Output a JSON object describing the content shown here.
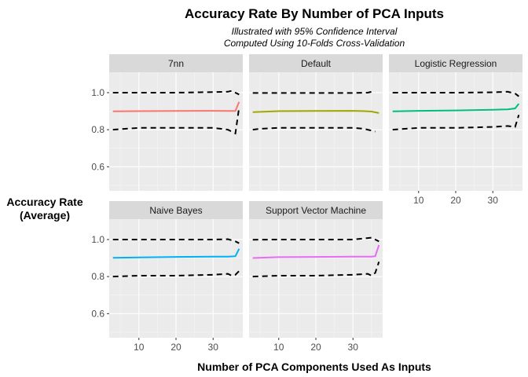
{
  "chart_data": {
    "type": "line",
    "title": "Accuracy Rate By Number of PCA Inputs",
    "subtitle_lines": [
      "Illustrated with 95% Confidence Interval",
      "Computed Using 10-Folds Cross-Validation"
    ],
    "xlabel": "Number of PCA Components Used As Inputs",
    "ylabel_lines": [
      "Accuracy Rate",
      "(Average)"
    ],
    "xlim": [
      2,
      38
    ],
    "ylim": [
      0.47,
      1.11
    ],
    "x_ticks": [
      10,
      20,
      30
    ],
    "y_ticks": [
      0.6,
      0.8,
      1.0
    ],
    "x_tick_labels": [
      "10",
      "20",
      "30"
    ],
    "y_tick_labels": [
      "0.6",
      "0.8",
      "1.0"
    ],
    "grid": true,
    "legend": "none",
    "ci_style": "dashed black",
    "panels": [
      {
        "name": "7nn",
        "color": "#F8766D",
        "mean": [
          [
            3,
            0.899
          ],
          [
            10,
            0.9
          ],
          [
            20,
            0.901
          ],
          [
            30,
            0.902
          ],
          [
            34,
            0.901
          ],
          [
            35,
            0.901
          ],
          [
            36,
            0.901
          ],
          [
            37,
            0.95
          ]
        ],
        "upper": [
          [
            3,
            1.0
          ],
          [
            10,
            1.0
          ],
          [
            20,
            1.0
          ],
          [
            30,
            1.003
          ],
          [
            34,
            1.005
          ],
          [
            35,
            1.01
          ],
          [
            36,
            1.0
          ],
          [
            37,
            0.99
          ]
        ],
        "lower": [
          [
            3,
            0.8
          ],
          [
            10,
            0.81
          ],
          [
            20,
            0.81
          ],
          [
            30,
            0.81
          ],
          [
            34,
            0.8
          ],
          [
            35,
            0.79
          ],
          [
            36,
            0.78
          ],
          [
            37,
            0.92
          ]
        ]
      },
      {
        "name": "Default",
        "color": "#A3A500",
        "mean": [
          [
            3,
            0.895
          ],
          [
            10,
            0.9
          ],
          [
            20,
            0.901
          ],
          [
            30,
            0.902
          ],
          [
            33,
            0.9
          ],
          [
            35,
            0.898
          ],
          [
            37,
            0.89
          ]
        ],
        "upper": [
          [
            3,
            0.998
          ],
          [
            10,
            0.998
          ],
          [
            20,
            0.998
          ],
          [
            30,
            0.998
          ],
          [
            34,
            1.0
          ],
          [
            35,
            1.005
          ],
          [
            36,
            1.005
          ]
        ],
        "lower": [
          [
            3,
            0.8
          ],
          [
            5,
            0.805
          ],
          [
            10,
            0.81
          ],
          [
            20,
            0.81
          ],
          [
            30,
            0.81
          ],
          [
            33,
            0.805
          ],
          [
            35,
            0.795
          ],
          [
            36,
            0.79
          ]
        ]
      },
      {
        "name": "Logistic Regression",
        "color": "#00BF7D",
        "mean": [
          [
            3,
            0.899
          ],
          [
            10,
            0.902
          ],
          [
            20,
            0.904
          ],
          [
            30,
            0.908
          ],
          [
            34,
            0.91
          ],
          [
            36,
            0.915
          ],
          [
            37,
            0.94
          ]
        ],
        "upper": [
          [
            3,
            1.0
          ],
          [
            10,
            1.0
          ],
          [
            20,
            1.0
          ],
          [
            30,
            1.002
          ],
          [
            34,
            1.005
          ],
          [
            36,
            0.995
          ],
          [
            37,
            0.98
          ]
        ],
        "lower": [
          [
            3,
            0.8
          ],
          [
            10,
            0.81
          ],
          [
            20,
            0.81
          ],
          [
            30,
            0.815
          ],
          [
            34,
            0.82
          ],
          [
            36,
            0.815
          ],
          [
            37,
            0.88
          ]
        ]
      },
      {
        "name": "Naive Bayes",
        "color": "#00B0F6",
        "mean": [
          [
            3,
            0.901
          ],
          [
            10,
            0.903
          ],
          [
            20,
            0.906
          ],
          [
            30,
            0.908
          ],
          [
            34,
            0.908
          ],
          [
            36,
            0.91
          ],
          [
            37,
            0.95
          ]
        ],
        "upper": [
          [
            3,
            1.0
          ],
          [
            10,
            1.0
          ],
          [
            20,
            1.0
          ],
          [
            30,
            1.0
          ],
          [
            34,
            1.002
          ],
          [
            36,
            0.99
          ],
          [
            37,
            0.98
          ]
        ],
        "lower": [
          [
            3,
            0.8
          ],
          [
            10,
            0.805
          ],
          [
            20,
            0.805
          ],
          [
            30,
            0.81
          ],
          [
            34,
            0.815
          ],
          [
            35,
            0.805
          ],
          [
            36,
            0.81
          ],
          [
            37,
            0.83
          ]
        ]
      },
      {
        "name": "Support Vector Machine",
        "color": "#E76BF3",
        "mean": [
          [
            3,
            0.9
          ],
          [
            10,
            0.905
          ],
          [
            20,
            0.906
          ],
          [
            30,
            0.908
          ],
          [
            35,
            0.908
          ],
          [
            36,
            0.91
          ],
          [
            37,
            0.97
          ]
        ],
        "upper": [
          [
            3,
            0.999
          ],
          [
            10,
            1.0
          ],
          [
            20,
            1.0
          ],
          [
            30,
            1.0
          ],
          [
            35,
            1.01
          ],
          [
            36,
            1.0
          ],
          [
            37,
            0.99
          ]
        ],
        "lower": [
          [
            3,
            0.8
          ],
          [
            10,
            0.805
          ],
          [
            20,
            0.805
          ],
          [
            30,
            0.81
          ],
          [
            34,
            0.815
          ],
          [
            35,
            0.805
          ],
          [
            36,
            0.82
          ],
          [
            37,
            0.88
          ]
        ]
      }
    ]
  }
}
